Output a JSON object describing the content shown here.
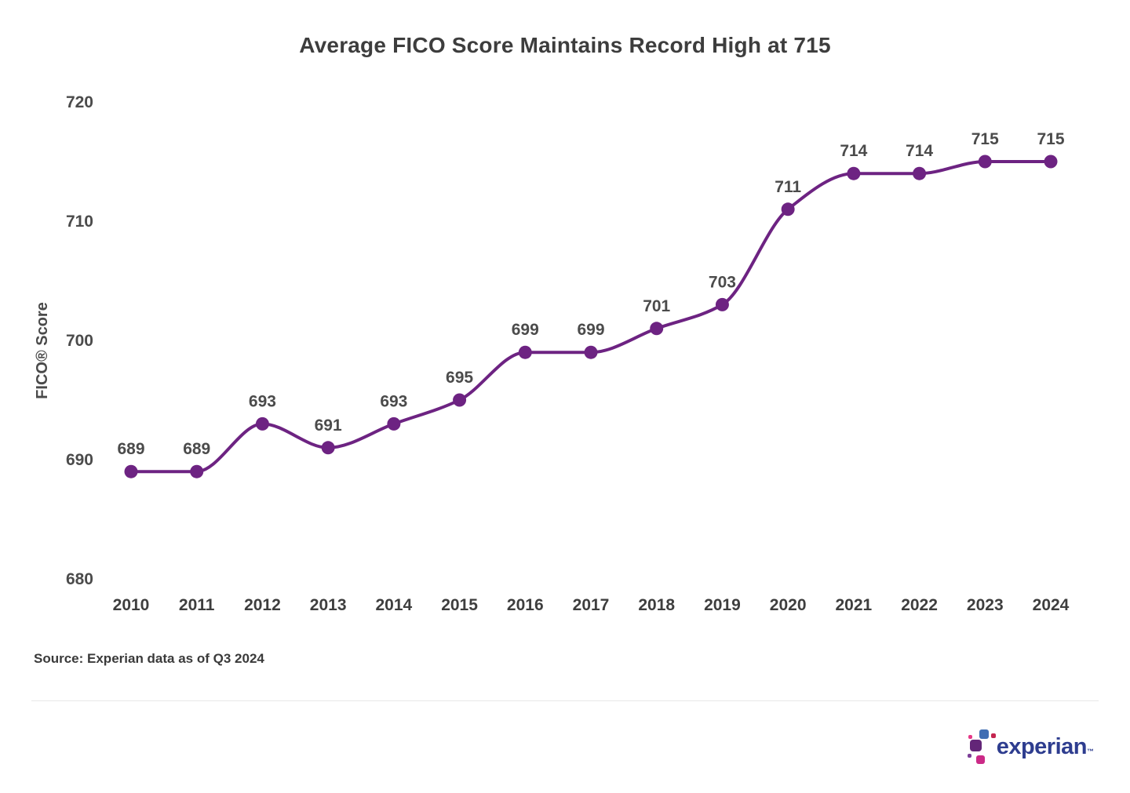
{
  "chart_data": {
    "type": "line",
    "title": "Average FICO Score Maintains Record High at 715",
    "x": [
      "2010",
      "2011",
      "2012",
      "2013",
      "2014",
      "2015",
      "2016",
      "2017",
      "2018",
      "2019",
      "2020",
      "2021",
      "2022",
      "2023",
      "2024"
    ],
    "values": [
      689,
      689,
      693,
      691,
      693,
      695,
      699,
      699,
      701,
      703,
      711,
      714,
      714,
      715,
      715
    ],
    "xlabel": "",
    "ylabel": "FICO® Score",
    "ylim": [
      680,
      720
    ],
    "yticks": [
      680,
      690,
      700,
      710,
      720
    ],
    "grid": false,
    "legend_position": "none",
    "curve": "monotone",
    "colors": {
      "line": "#6d2382",
      "marker": "#6d2382",
      "data_label": "#4b4b4b",
      "tick_label": "#4b4b4b",
      "title": "#3d3d3d"
    }
  },
  "footer": {
    "source": "Source: Experian data as of Q3 2024",
    "logo": {
      "wordmark": "experian",
      "trademark": "™",
      "colors": {
        "wordmark": "#2e3d8f",
        "purple": "#632678",
        "blue": "#406eb3",
        "magenta": "#cb2a87",
        "pink": "#e63888",
        "crimson": "#c4254f",
        "violet": "#7d3f98"
      }
    }
  }
}
